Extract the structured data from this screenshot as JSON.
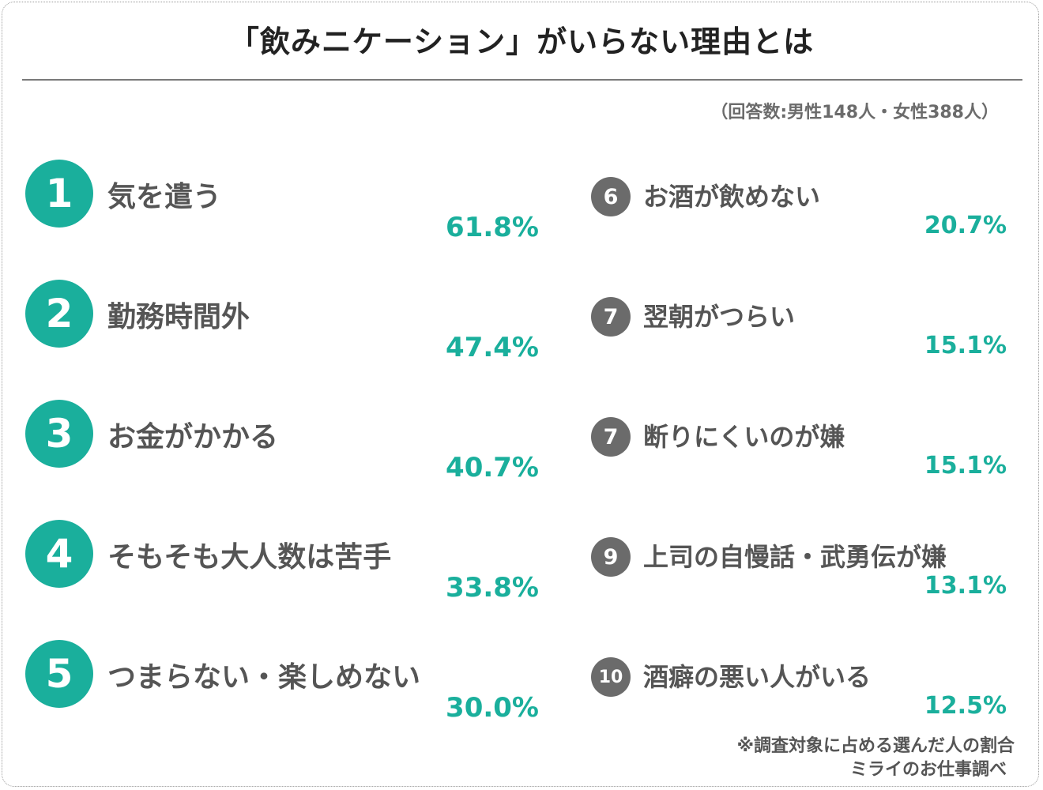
{
  "title": "「飲みニケーション」がいらない理由とは",
  "respondents_note": "（回答数:男性148人・女性388人）",
  "footnote": "※調査対象に占める選んだ人の割合",
  "source": "ミライのお仕事調べ",
  "colors": {
    "accent": "#1aaf9c",
    "rank_gray": "#6b6b6b",
    "text": "#555555",
    "title": "#222222"
  },
  "chart_data": {
    "type": "table",
    "unit": "%",
    "items": [
      {
        "rank": "1",
        "label": "気を遣う",
        "value": 61.8,
        "value_label": "61.8%"
      },
      {
        "rank": "2",
        "label": "勤務時間外",
        "value": 47.4,
        "value_label": "47.4%"
      },
      {
        "rank": "3",
        "label": "お金がかかる",
        "value": 40.7,
        "value_label": "40.7%"
      },
      {
        "rank": "4",
        "label": "そもそも大人数は苦手",
        "value": 33.8,
        "value_label": "33.8%"
      },
      {
        "rank": "5",
        "label": "つまらない・楽しめない",
        "value": 30.0,
        "value_label": "30.0%"
      },
      {
        "rank": "6",
        "label": "お酒が飲めない",
        "value": 20.7,
        "value_label": "20.7%"
      },
      {
        "rank": "7",
        "label": "翌朝がつらい",
        "value": 15.1,
        "value_label": "15.1%"
      },
      {
        "rank": "7",
        "label": "断りにくいのが嫌",
        "value": 15.1,
        "value_label": "15.1%"
      },
      {
        "rank": "9",
        "label": "上司の自慢話・武勇伝が嫌",
        "value": 13.1,
        "value_label": "13.1%"
      },
      {
        "rank": "10",
        "label": "酒癖の悪い人がいる",
        "value": 12.5,
        "value_label": "12.5%"
      }
    ]
  }
}
